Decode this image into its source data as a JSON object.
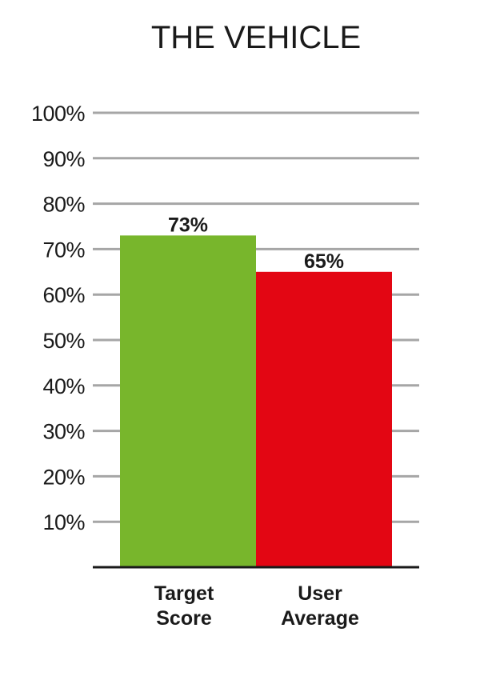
{
  "chart_data": {
    "type": "bar",
    "title": "THE VEHICLE",
    "categories": [
      [
        "Target",
        "Score"
      ],
      [
        "User",
        "Average"
      ]
    ],
    "values": [
      73,
      65
    ],
    "value_labels": [
      "73%",
      "65%"
    ],
    "colors": [
      "#78b62c",
      "#e30613"
    ],
    "ylim": [
      0,
      100
    ],
    "yticks": [
      10,
      20,
      30,
      40,
      50,
      60,
      70,
      80,
      90,
      100
    ],
    "ytick_labels": [
      "10%",
      "20%",
      "30%",
      "40%",
      "50%",
      "60%",
      "70%",
      "80%",
      "90%",
      "100%"
    ],
    "grid": true,
    "grid_color": "#a6a6a6",
    "axis_color": "#1a1a1a"
  }
}
